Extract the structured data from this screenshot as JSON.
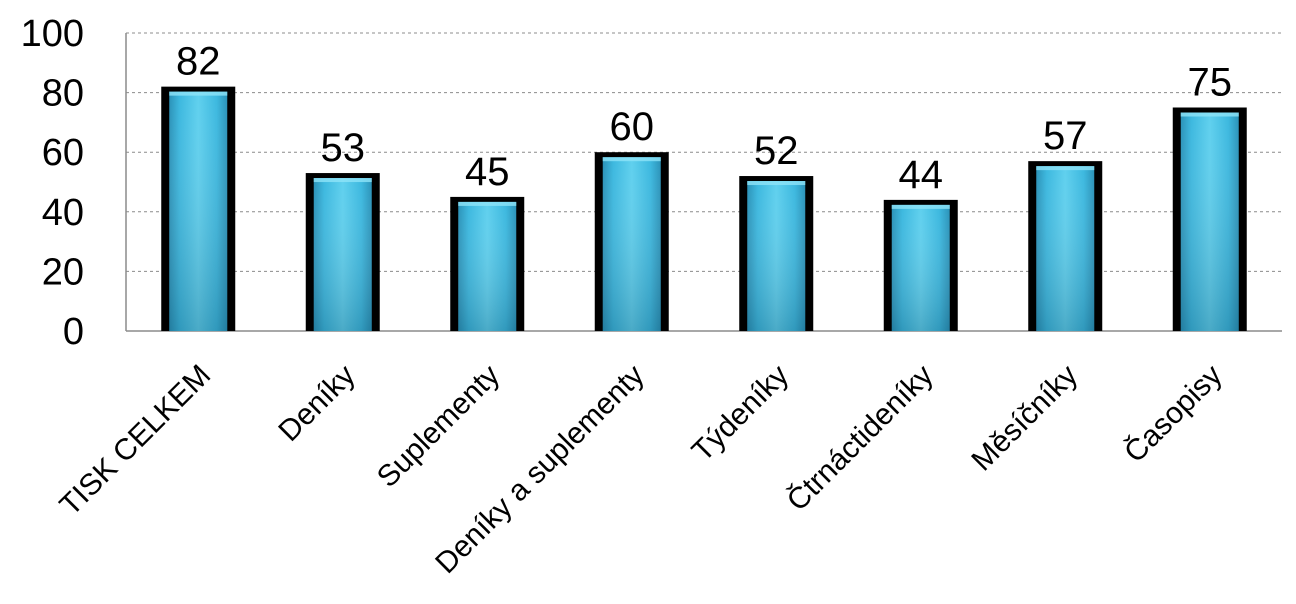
{
  "chart_data": {
    "type": "bar",
    "title": "",
    "xlabel": "",
    "ylabel": "",
    "categories": [
      "TISK CELKEM",
      "Deníky",
      "Suplementy",
      "Deníky a suplementy",
      "Týdeníky",
      "Čtrnáctideníky",
      "Měsíčníky",
      "Časopisy"
    ],
    "values": [
      82,
      53,
      45,
      60,
      52,
      44,
      57,
      75
    ],
    "ylim": [
      0,
      100
    ],
    "yticks": [
      0,
      20,
      40,
      60,
      80,
      100
    ],
    "grid": true,
    "legend": false,
    "data_labels": true,
    "colors": {
      "bar_fill_light": "#5fd0ee",
      "bar_fill_mid": "#3cb8df",
      "bar_fill_dark": "#2a92b8",
      "bar_edge": "#000000",
      "gridline": "#8c8c8c",
      "axis": "#8c8c8c"
    }
  }
}
